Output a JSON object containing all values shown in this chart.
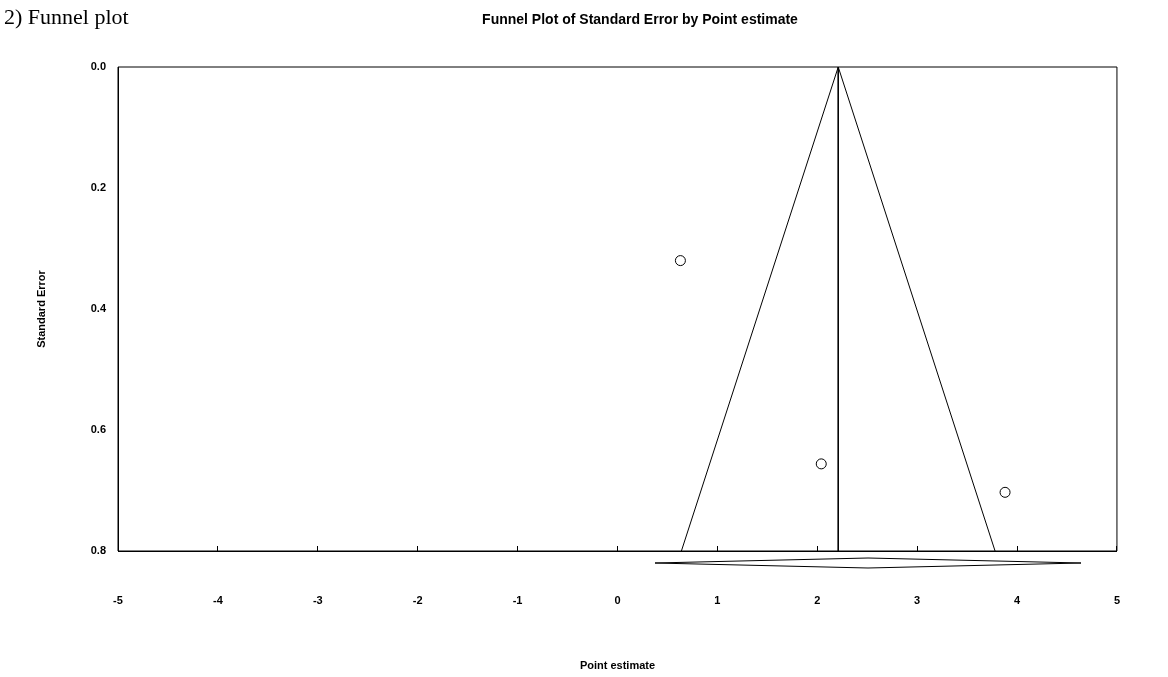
{
  "chart_data": {
    "type": "scatter",
    "title": "Funnel Plot of Standard Error by Point estimate",
    "xlabel": "Point estimate",
    "ylabel": "Standard Error",
    "annotations": [
      "2) Funnel plot"
    ],
    "xlim": [
      -5,
      5
    ],
    "xticks": [
      -5,
      -4,
      -3,
      -2,
      -1,
      0,
      1,
      2,
      3,
      4,
      5
    ],
    "ylim": [
      0.8,
      0
    ],
    "yticks": [
      {
        "value": 0,
        "label": "0.0"
      },
      0.2,
      0.4,
      0.6,
      0.8
    ],
    "marker": "circle",
    "series": [
      {
        "type": "scatter",
        "color": "#000000",
        "x": [
          0.63,
          2.04,
          3.88
        ],
        "values": [
          0.32,
          0.656,
          0.703
        ]
      },
      {
        "type": "line",
        "color": "#000000",
        "marker": "none",
        "x": [
          0.64,
          2.21,
          3.78
        ],
        "values": [
          0.8,
          0,
          0.8
        ]
      },
      {
        "type": "line",
        "color": "#000000",
        "marker": "none",
        "x": [
          2.21,
          2.21
        ],
        "values": [
          0,
          0.8
        ]
      }
    ]
  }
}
